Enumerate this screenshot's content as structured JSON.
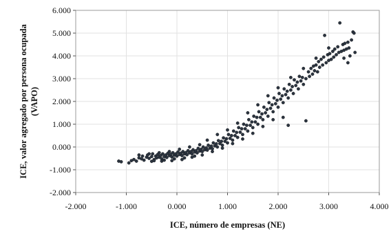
{
  "chart_data": {
    "type": "scatter",
    "title": "",
    "xlabel": "ICE, número de empresas (NE)",
    "ylabel_line1": "ICE, valor agregado por persona ocupada",
    "ylabel_line2": "(VAPO)",
    "xlim": [
      -2,
      4
    ],
    "ylim": [
      -2,
      6
    ],
    "x_ticks": [
      -2,
      -1,
      0,
      1,
      2,
      3,
      4
    ],
    "x_tick_labels": [
      "-2.000",
      "-1.000",
      "0.000",
      "1.000",
      "2.000",
      "3.000",
      "4.000"
    ],
    "y_ticks": [
      -2,
      -1,
      0,
      1,
      2,
      3,
      4,
      5,
      6
    ],
    "y_tick_labels": [
      "-2.000",
      "-1.000",
      "0.000",
      "1.000",
      "2.000",
      "3.000",
      "4.000",
      "5.000",
      "6.000"
    ],
    "grid": true,
    "legend": "none",
    "marker_color": "#2b3440",
    "points": [
      [
        -1.15,
        -0.62
      ],
      [
        -1.1,
        -0.65
      ],
      [
        -0.95,
        -0.7
      ],
      [
        -0.9,
        -0.6
      ],
      [
        -0.85,
        -0.55
      ],
      [
        -0.8,
        -0.62
      ],
      [
        -0.75,
        -0.48
      ],
      [
        -0.7,
        -0.52
      ],
      [
        -0.68,
        -0.4
      ],
      [
        -0.65,
        -0.58
      ],
      [
        -0.6,
        -0.45
      ],
      [
        -0.58,
        -0.35
      ],
      [
        -0.55,
        -0.5
      ],
      [
        -0.5,
        -0.42
      ],
      [
        -0.48,
        -0.3
      ],
      [
        -0.45,
        -0.55
      ],
      [
        -0.42,
        -0.4
      ],
      [
        -0.4,
        -0.48
      ],
      [
        -0.38,
        -0.33
      ],
      [
        -0.35,
        -0.45
      ],
      [
        -0.32,
        -0.38
      ],
      [
        -0.3,
        -0.52
      ],
      [
        -0.28,
        -0.3
      ],
      [
        -0.25,
        -0.42
      ],
      [
        -0.22,
        -0.35
      ],
      [
        -0.2,
        -0.46
      ],
      [
        -0.18,
        -0.28
      ],
      [
        -0.15,
        -0.38
      ],
      [
        -0.12,
        -0.32
      ],
      [
        -0.1,
        -0.44
      ],
      [
        -0.08,
        -0.25
      ],
      [
        -0.05,
        -0.36
      ],
      [
        -0.02,
        -0.3
      ],
      [
        0.0,
        -0.4
      ],
      [
        0.02,
        -0.22
      ],
      [
        0.05,
        -0.33
      ],
      [
        0.08,
        -0.27
      ],
      [
        0.1,
        -0.38
      ],
      [
        0.12,
        -0.2
      ],
      [
        0.15,
        -0.3
      ],
      [
        0.18,
        -0.24
      ],
      [
        0.2,
        -0.34
      ],
      [
        0.22,
        -0.16
      ],
      [
        0.25,
        -0.26
      ],
      [
        0.28,
        -0.2
      ],
      [
        0.3,
        -0.3
      ],
      [
        0.32,
        -0.12
      ],
      [
        0.35,
        -0.22
      ],
      [
        0.38,
        -0.16
      ],
      [
        0.4,
        -0.26
      ],
      [
        0.42,
        -0.06
      ],
      [
        0.45,
        -0.18
      ],
      [
        0.48,
        -0.1
      ],
      [
        0.5,
        -0.2
      ],
      [
        0.52,
        0.0
      ],
      [
        0.55,
        -0.12
      ],
      [
        0.58,
        -0.04
      ],
      [
        0.6,
        -0.14
      ],
      [
        0.62,
        0.08
      ],
      [
        0.65,
        -0.05
      ],
      [
        0.68,
        0.04
      ],
      [
        0.7,
        -0.08
      ],
      [
        0.72,
        0.18
      ],
      [
        0.75,
        0.05
      ],
      [
        0.78,
        0.14
      ],
      [
        0.8,
        0.0
      ],
      [
        0.82,
        0.28
      ],
      [
        0.85,
        0.15
      ],
      [
        0.88,
        0.25
      ],
      [
        0.9,
        0.08
      ],
      [
        0.92,
        0.4
      ],
      [
        0.95,
        0.25
      ],
      [
        0.98,
        0.36
      ],
      [
        1.0,
        0.18
      ],
      [
        1.02,
        0.55
      ],
      [
        1.05,
        0.38
      ],
      [
        1.08,
        0.5
      ],
      [
        1.1,
        0.3
      ],
      [
        1.12,
        0.7
      ],
      [
        1.15,
        0.5
      ],
      [
        1.18,
        0.64
      ],
      [
        1.2,
        0.42
      ],
      [
        1.22,
        0.85
      ],
      [
        1.25,
        0.65
      ],
      [
        1.28,
        0.8
      ],
      [
        1.3,
        0.55
      ],
      [
        1.32,
        1.0
      ],
      [
        1.35,
        0.8
      ],
      [
        1.38,
        0.95
      ],
      [
        1.4,
        0.7
      ],
      [
        1.42,
        1.2
      ],
      [
        1.45,
        0.95
      ],
      [
        1.48,
        1.1
      ],
      [
        1.5,
        0.85
      ],
      [
        1.52,
        1.35
      ],
      [
        1.55,
        1.1
      ],
      [
        1.58,
        1.3
      ],
      [
        1.6,
        1.0
      ],
      [
        1.62,
        1.55
      ],
      [
        1.65,
        1.3
      ],
      [
        1.68,
        1.45
      ],
      [
        1.7,
        1.2
      ],
      [
        1.72,
        1.75
      ],
      [
        1.75,
        1.5
      ],
      [
        1.78,
        1.65
      ],
      [
        1.8,
        1.35
      ],
      [
        1.82,
        1.95
      ],
      [
        1.85,
        1.7
      ],
      [
        1.88,
        1.85
      ],
      [
        1.9,
        1.55
      ],
      [
        1.92,
        2.15
      ],
      [
        1.95,
        1.9
      ],
      [
        1.98,
        2.05
      ],
      [
        2.0,
        1.75
      ],
      [
        2.02,
        2.35
      ],
      [
        2.05,
        2.1
      ],
      [
        2.08,
        2.25
      ],
      [
        2.1,
        1.95
      ],
      [
        2.12,
        2.55
      ],
      [
        2.15,
        2.3
      ],
      [
        2.18,
        2.45
      ],
      [
        2.2,
        2.15
      ],
      [
        2.22,
        2.75
      ],
      [
        2.25,
        2.5
      ],
      [
        2.28,
        2.65
      ],
      [
        2.3,
        2.35
      ],
      [
        2.32,
        2.95
      ],
      [
        2.35,
        2.7
      ],
      [
        2.38,
        2.85
      ],
      [
        2.4,
        2.55
      ],
      [
        2.42,
        3.1
      ],
      [
        2.45,
        2.9
      ],
      [
        2.48,
        3.05
      ],
      [
        2.5,
        2.75
      ],
      [
        2.55,
        1.15
      ],
      [
        2.55,
        3.0
      ],
      [
        2.6,
        3.3
      ],
      [
        2.62,
        3.1
      ],
      [
        2.65,
        3.45
      ],
      [
        2.68,
        3.2
      ],
      [
        2.7,
        3.55
      ],
      [
        2.72,
        3.35
      ],
      [
        2.75,
        3.6
      ],
      [
        2.78,
        3.3
      ],
      [
        2.8,
        3.75
      ],
      [
        2.82,
        3.5
      ],
      [
        2.85,
        3.85
      ],
      [
        2.88,
        3.6
      ],
      [
        2.9,
        3.95
      ],
      [
        2.92,
        4.9
      ],
      [
        2.95,
        3.7
      ],
      [
        2.98,
        4.05
      ],
      [
        3.0,
        3.8
      ],
      [
        3.02,
        4.1
      ],
      [
        3.05,
        3.85
      ],
      [
        3.08,
        4.2
      ],
      [
        3.1,
        3.95
      ],
      [
        3.12,
        4.3
      ],
      [
        3.15,
        4.05
      ],
      [
        3.18,
        4.4
      ],
      [
        3.2,
        4.15
      ],
      [
        3.22,
        5.45
      ],
      [
        3.25,
        4.2
      ],
      [
        3.28,
        4.5
      ],
      [
        3.3,
        4.25
      ],
      [
        3.32,
        4.55
      ],
      [
        3.35,
        4.3
      ],
      [
        3.38,
        4.6
      ],
      [
        3.4,
        4.35
      ],
      [
        3.42,
        4.0
      ],
      [
        3.45,
        4.7
      ],
      [
        3.48,
        5.05
      ],
      [
        3.5,
        5.0
      ],
      [
        3.52,
        4.15
      ],
      [
        3.3,
        3.9
      ],
      [
        3.38,
        3.7
      ],
      [
        2.2,
        0.95
      ],
      [
        2.1,
        1.3
      ],
      [
        1.9,
        1.2
      ],
      [
        1.7,
        0.9
      ],
      [
        1.5,
        0.6
      ],
      [
        1.3,
        0.35
      ],
      [
        1.1,
        0.15
      ],
      [
        0.9,
        -0.05
      ],
      [
        0.7,
        -0.2
      ],
      [
        0.5,
        -0.35
      ],
      [
        0.3,
        -0.45
      ],
      [
        0.1,
        -0.55
      ],
      [
        -0.1,
        -0.6
      ],
      [
        -0.3,
        -0.62
      ],
      [
        -0.5,
        -0.63
      ],
      [
        0.6,
        0.3
      ],
      [
        0.8,
        0.55
      ],
      [
        1.0,
        0.75
      ],
      [
        1.2,
        1.05
      ],
      [
        1.4,
        1.5
      ],
      [
        1.6,
        1.85
      ],
      [
        1.8,
        2.25
      ],
      [
        2.0,
        2.6
      ],
      [
        2.25,
        3.05
      ],
      [
        2.5,
        3.45
      ],
      [
        2.75,
        3.9
      ],
      [
        3.0,
        4.35
      ],
      [
        0.45,
        0.1
      ],
      [
        0.25,
        0.0
      ],
      [
        0.05,
        -0.1
      ],
      [
        -0.15,
        -0.2
      ],
      [
        -0.35,
        -0.25
      ],
      [
        -0.55,
        -0.3
      ],
      [
        -0.75,
        -0.35
      ],
      [
        0.35,
        -0.4
      ],
      [
        0.15,
        -0.48
      ],
      [
        -0.05,
        -0.52
      ],
      [
        -0.25,
        -0.58
      ],
      [
        -0.45,
        -0.6
      ]
    ]
  }
}
